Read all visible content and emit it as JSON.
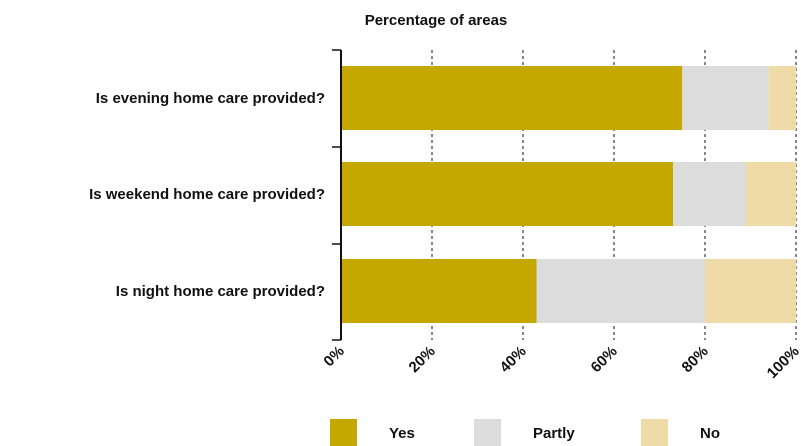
{
  "chart_data": {
    "type": "bar",
    "orientation": "horizontal",
    "stacked": true,
    "title": "Percentage of areas",
    "categories": [
      "Is evening home care provided?",
      "Is weekend home care provided?",
      "Is night home care provided?"
    ],
    "series": [
      {
        "name": "Yes",
        "color": "#c4a800",
        "values": [
          75,
          73,
          43
        ]
      },
      {
        "name": "Partly",
        "color": "#dcdcdc",
        "values": [
          19,
          16,
          37
        ]
      },
      {
        "name": "No",
        "color": "#eedba8",
        "values": [
          6,
          11,
          20
        ]
      }
    ],
    "xlim": [
      0,
      100
    ],
    "x_ticks": [
      "0%",
      "20%",
      "40%",
      "60%",
      "80%",
      "100%"
    ],
    "grid": "vertical-dashed",
    "legend_position": "bottom"
  }
}
